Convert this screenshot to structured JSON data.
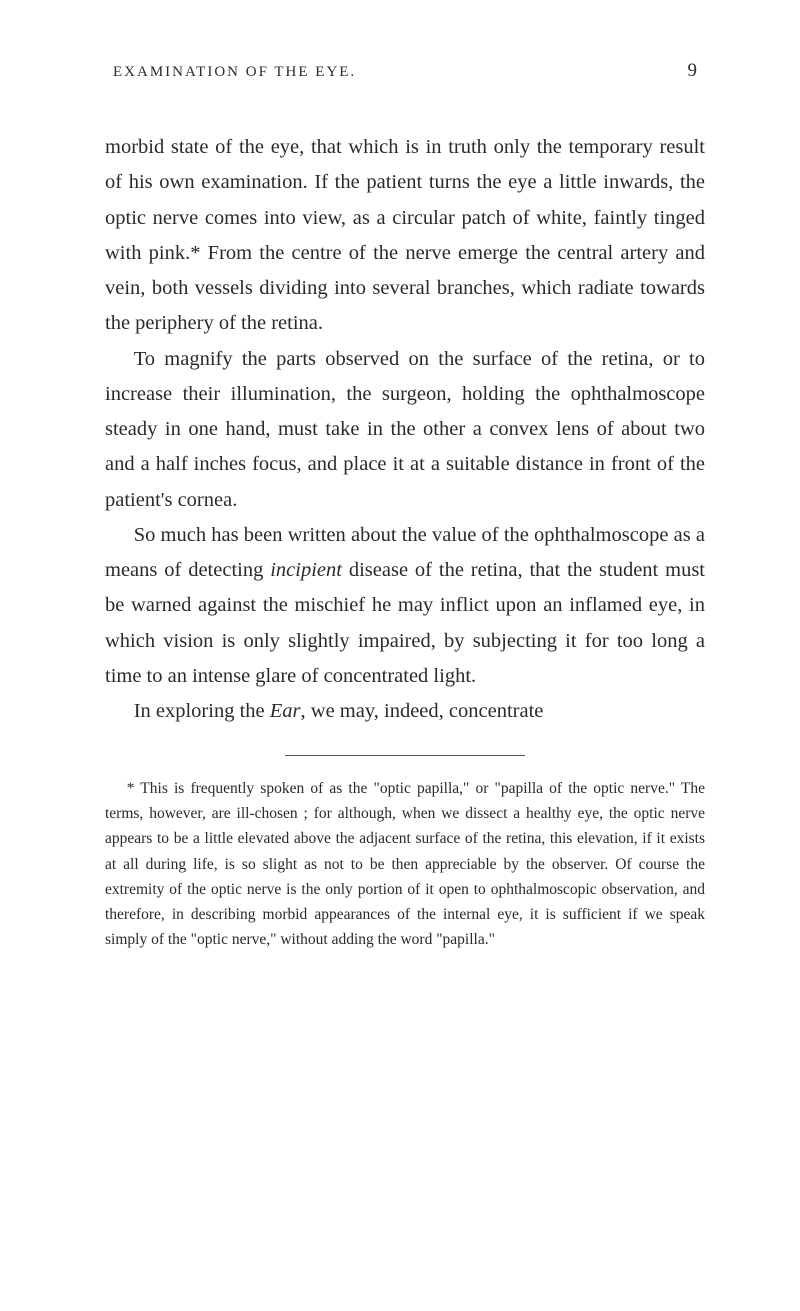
{
  "page": {
    "running_title": "EXAMINATION OF THE EYE.",
    "number": "9",
    "background_color": "#ffffff",
    "text_color": "#2a2a2a"
  },
  "paragraphs": {
    "p1": "morbid state of the eye, that which is in truth only the temporary result of his own examination. If the patient turns the eye a little inwards, the optic nerve comes into view, as a circular patch of white, faintly tinged with pink.* From the centre of the nerve emerge the central artery and vein, both vessels dividing into several branches, which radiate towards the periphery of the retina.",
    "p2_a": "To magnify the parts observed on the surface of the retina, or to increase their illumination, the surgeon, holding the ophthalmoscope steady in one hand, must take in the other a convex lens of about two and a half inches focus, and place it at a suitable distance in front of the patient's cornea.",
    "p3_a": "So much has been written about the value of the ophthalmoscope as a means of detecting ",
    "p3_italic": "incipient",
    "p3_b": " disease of the retina, that the student must be warned against the mischief he may inflict upon an inflamed eye, in which vision is only slightly impaired, by subjecting it for too long a time to an intense glare of concentrated light.",
    "p4_a": "In exploring the ",
    "p4_italic": "Ear",
    "p4_b": ", we may, indeed, concentrate"
  },
  "footnote": {
    "text": "* This is frequently spoken of as the \"optic papilla,\" or \"papilla of the optic nerve.\" The terms, however, are ill-chosen ; for although, when we dissect a healthy eye, the optic nerve appears to be a little elevated above the adjacent surface of the retina, this elevation, if it exists at all during life, is so slight as not to be then appreciable by the observer. Of course the extremity of the optic nerve is the only portion of it open to ophthalmoscopic observation, and therefore, in describing morbid appearances of the internal eye, it is sufficient if we speak simply of the \"optic nerve,\" without adding the word \"papilla.\""
  },
  "typography": {
    "body_fontsize": 20.5,
    "body_lineheight": 1.72,
    "footnote_fontsize": 15.5,
    "footnote_lineheight": 1.62,
    "header_fontsize": 15,
    "pagenum_fontsize": 19
  }
}
